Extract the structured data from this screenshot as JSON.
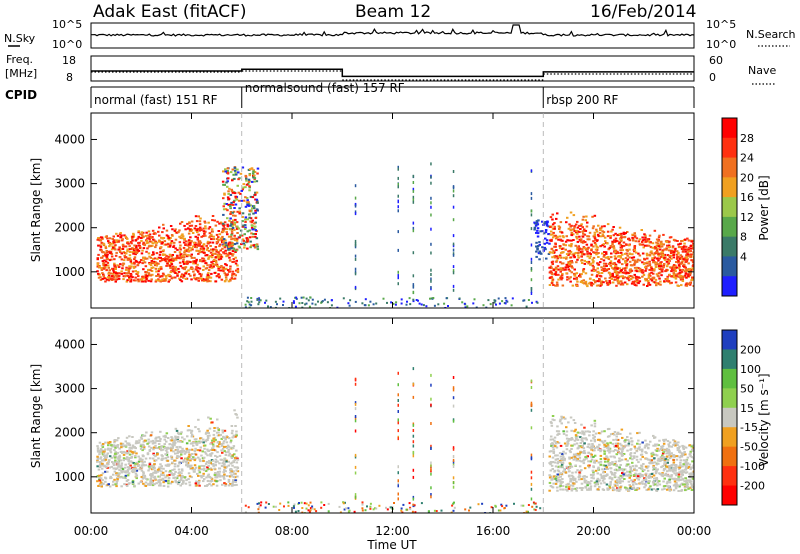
{
  "header": {
    "left": "Adak East (fitACF)",
    "center": "Beam 12",
    "right": "16/Feb/2014"
  },
  "noise_panel": {
    "left_label": "N.Sky",
    "right_label": "N.Search",
    "left_ticks": [
      "10^5",
      "10^0"
    ],
    "right_ticks": [
      "10^5",
      "10^0"
    ]
  },
  "freq_panel": {
    "left_label_1": "Freq.",
    "left_label_2": "[MHz]",
    "right_label": "Nave",
    "left_ticks": [
      "18",
      "8"
    ],
    "right_ticks": [
      "60",
      "0"
    ]
  },
  "cpid_panel": {
    "label": "CPID",
    "modes": [
      "normal (fast) 151 RF",
      "normalsound (fast) 157 RF",
      "rbsp 200 RF"
    ]
  },
  "power_panel": {
    "ylabel": "Slant Range [km]",
    "yticks": [
      "1000",
      "2000",
      "3000",
      "4000"
    ],
    "colorbar_label": "Power [dB]",
    "colorbar_ticks": [
      "4",
      "8",
      "12",
      "16",
      "20",
      "24",
      "28"
    ]
  },
  "velocity_panel": {
    "ylabel": "Slant Range [km]",
    "yticks": [
      "1000",
      "2000",
      "3000",
      "4000"
    ],
    "colorbar_label": "Velocity [m s⁻¹]",
    "colorbar_ticks": [
      "200",
      "100",
      "50",
      "15",
      "-15",
      "-50",
      "-100",
      "-200"
    ]
  },
  "xaxis": {
    "label": "Time UT",
    "ticks": [
      "00:00",
      "04:00",
      "08:00",
      "12:00",
      "16:00",
      "20:00",
      "00:00"
    ]
  },
  "chart_data": {
    "type": "heatmap",
    "title": "Adak East (fitACF)  Beam 12  16/Feb/2014",
    "xlabel": "Time UT",
    "ylabel": "Slant Range [km]",
    "xlim_hours": [
      0,
      24
    ],
    "ylim_km": [
      180,
      4600
    ],
    "mode_boundaries_hours": [
      6.0,
      18.0
    ],
    "mode_segments": [
      {
        "label": "normal (fast) 151 RF",
        "start": 0,
        "end": 6
      },
      {
        "label": "normalsound (fast) 157 RF",
        "start": 6,
        "end": 18
      },
      {
        "label": "rbsp 200 RF",
        "start": 18,
        "end": 24
      }
    ],
    "frequency_mhz": [
      {
        "start": 0,
        "end": 6,
        "value": 13.0
      },
      {
        "start": 6,
        "end": 10,
        "value": 14.0
      },
      {
        "start": 10,
        "end": 18,
        "value": 10.0
      },
      {
        "start": 18,
        "end": 24,
        "value": 12.5
      }
    ],
    "power_colorbar": {
      "label": "Power [dB]",
      "ticks": [
        4,
        8,
        12,
        16,
        20,
        24,
        28
      ],
      "colors": [
        "#1f1fff",
        "#2a5aa0",
        "#3a7a68",
        "#58a84a",
        "#9bc84a",
        "#f0a020",
        "#f07020",
        "#ff3010",
        "#ff0000"
      ]
    },
    "velocity_colorbar": {
      "label": "Velocity [m s⁻¹]",
      "ticks": [
        200,
        100,
        50,
        15,
        -15,
        -50,
        -100,
        -200
      ],
      "colors": [
        "#1f3fbf",
        "#2f7f6f",
        "#5fbf3f",
        "#8fd04f",
        "#c8c8c0",
        "#f0a020",
        "#f07010",
        "#ff3010",
        "#ff0000"
      ]
    },
    "power_regions": [
      {
        "t0": 0.2,
        "t1": 5.8,
        "r0": 800,
        "r1": 2600,
        "level": "high"
      },
      {
        "t0": 5.2,
        "t1": 6.6,
        "r0": 1500,
        "r1": 3400,
        "level": "mixed"
      },
      {
        "t0": 17.6,
        "t1": 18.2,
        "r0": 1300,
        "r1": 2200,
        "level": "low"
      },
      {
        "t0": 18.2,
        "t1": 24.0,
        "r0": 700,
        "r1": 2600,
        "level": "high"
      }
    ],
    "velocity_regions": [
      {
        "t0": 0.2,
        "t1": 5.8,
        "r0": 800,
        "r1": 2600,
        "level": "near-zero"
      },
      {
        "t0": 18.2,
        "t1": 24.0,
        "r0": 700,
        "r1": 2600,
        "level": "near-zero"
      }
    ]
  }
}
